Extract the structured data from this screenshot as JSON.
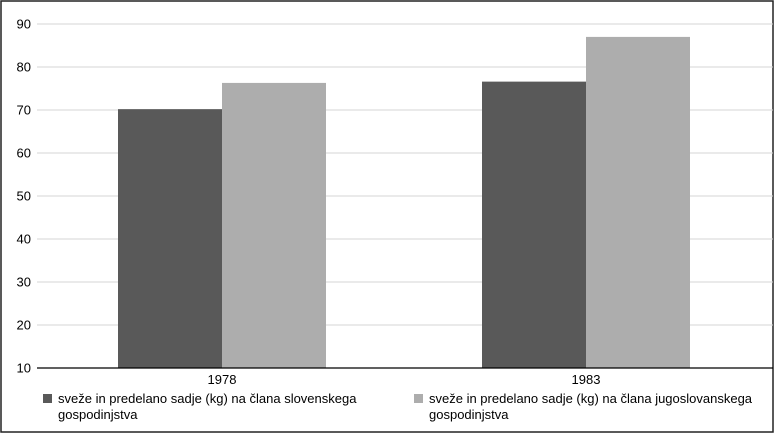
{
  "chart_data": {
    "type": "bar",
    "categories": [
      "1978",
      "1983"
    ],
    "series": [
      {
        "name": "sveže in predelano sadje (kg) na člana slovenskega gospodinjstva",
        "legend_lines": [
          "sveže in predelano sadje (kg) na člana slovenskega",
          "gospodinjstva"
        ],
        "color": "#595959",
        "values": [
          70.2,
          76.6
        ]
      },
      {
        "name": "sveže in predelano sadje (kg) na člana jugoslovanskega gospodinjstva",
        "legend_lines": [
          "sveže in predelano sadje (kg) na člana jugoslovanskega",
          "gospodinjstva"
        ],
        "color": "#adadad",
        "values": [
          76.3,
          87.0
        ]
      }
    ],
    "title": "",
    "xlabel": "",
    "ylabel": "",
    "ylim": [
      10,
      90
    ],
    "yticks": [
      "10",
      "20",
      "30",
      "40",
      "50",
      "60",
      "70",
      "80",
      "90"
    ],
    "grid": true,
    "legend_position": "bottom"
  }
}
